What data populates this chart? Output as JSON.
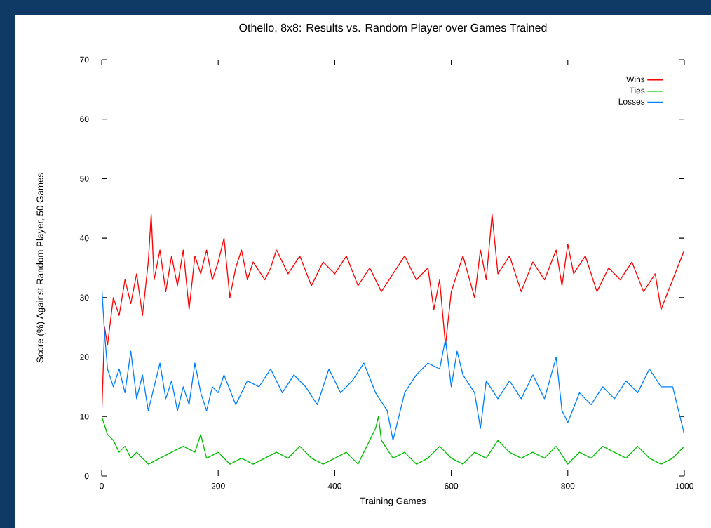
{
  "chart_data": {
    "type": "line",
    "title": "Othello, 8x8: Results vs. Random Player over Games Trained",
    "xlabel": "Training Games",
    "ylabel": "Score (%) Against Random Player, 50 Games",
    "xlim": [
      0,
      1000
    ],
    "ylim": [
      0,
      70
    ],
    "xticks": [
      0,
      200,
      400,
      600,
      800,
      1000
    ],
    "yticks": [
      0,
      10,
      20,
      30,
      40,
      50,
      60,
      70
    ],
    "grid": false,
    "legend": "top right",
    "marker": "none",
    "line_style": "solid",
    "series": [
      {
        "name": "Wins",
        "color": "#ff0000",
        "x": [
          0,
          5,
          10,
          20,
          30,
          40,
          50,
          60,
          70,
          80,
          85,
          90,
          100,
          110,
          120,
          130,
          140,
          150,
          160,
          170,
          180,
          190,
          200,
          210,
          220,
          230,
          240,
          250,
          260,
          280,
          290,
          300,
          320,
          340,
          360,
          380,
          400,
          420,
          440,
          460,
          480,
          500,
          520,
          540,
          560,
          570,
          580,
          590,
          600,
          620,
          640,
          650,
          660,
          670,
          680,
          700,
          720,
          740,
          760,
          780,
          790,
          800,
          810,
          830,
          850,
          870,
          890,
          910,
          930,
          950,
          960,
          980,
          1000
        ],
        "values": [
          10,
          25,
          22,
          30,
          27,
          33,
          29,
          34,
          27,
          36,
          44,
          33,
          38,
          31,
          37,
          32,
          38,
          28,
          37,
          34,
          38,
          33,
          36,
          40,
          30,
          35,
          38,
          33,
          36,
          33,
          35,
          38,
          34,
          37,
          32,
          36,
          34,
          37,
          32,
          35,
          31,
          34,
          37,
          33,
          35,
          28,
          33,
          22,
          31,
          37,
          30,
          38,
          33,
          44,
          34,
          37,
          31,
          36,
          33,
          38,
          32,
          39,
          34,
          37,
          31,
          35,
          33,
          36,
          31,
          34,
          28,
          33,
          38
        ]
      },
      {
        "name": "Ties",
        "color": "#00c000",
        "x": [
          0,
          10,
          20,
          30,
          40,
          50,
          60,
          70,
          80,
          100,
          120,
          140,
          160,
          170,
          180,
          200,
          220,
          240,
          260,
          280,
          300,
          320,
          340,
          360,
          380,
          400,
          420,
          440,
          460,
          470,
          475,
          480,
          500,
          520,
          540,
          560,
          580,
          600,
          620,
          640,
          660,
          680,
          700,
          720,
          740,
          760,
          780,
          800,
          820,
          840,
          860,
          880,
          900,
          920,
          940,
          960,
          980,
          1000
        ],
        "values": [
          10,
          7,
          6,
          4,
          5,
          3,
          4,
          3,
          2,
          3,
          4,
          5,
          4,
          7,
          3,
          4,
          2,
          3,
          2,
          3,
          4,
          3,
          5,
          3,
          2,
          3,
          4,
          2,
          6,
          8,
          10,
          6,
          3,
          4,
          2,
          3,
          5,
          3,
          2,
          4,
          3,
          6,
          4,
          3,
          4,
          3,
          5,
          2,
          4,
          3,
          5,
          4,
          3,
          5,
          3,
          2,
          3,
          5
        ]
      },
      {
        "name": "Losses",
        "color": "#0080ff",
        "x": [
          0,
          5,
          10,
          20,
          30,
          40,
          50,
          60,
          70,
          80,
          90,
          100,
          110,
          120,
          130,
          140,
          150,
          160,
          170,
          180,
          190,
          200,
          210,
          230,
          250,
          270,
          290,
          310,
          330,
          350,
          370,
          390,
          410,
          430,
          450,
          470,
          490,
          500,
          520,
          540,
          560,
          580,
          590,
          600,
          610,
          620,
          640,
          650,
          660,
          680,
          700,
          720,
          740,
          760,
          780,
          790,
          800,
          820,
          840,
          860,
          880,
          900,
          920,
          940,
          960,
          980,
          1000
        ],
        "values": [
          32,
          24,
          18,
          15,
          18,
          14,
          21,
          13,
          17,
          11,
          15,
          19,
          13,
          16,
          11,
          15,
          12,
          19,
          14,
          11,
          15,
          14,
          17,
          12,
          16,
          15,
          18,
          14,
          17,
          15,
          12,
          18,
          14,
          16,
          19,
          14,
          11,
          6,
          14,
          17,
          19,
          18,
          23,
          15,
          21,
          17,
          14,
          8,
          16,
          13,
          16,
          13,
          17,
          13,
          20,
          11,
          9,
          14,
          12,
          15,
          13,
          16,
          14,
          18,
          15,
          15,
          7
        ]
      }
    ]
  }
}
